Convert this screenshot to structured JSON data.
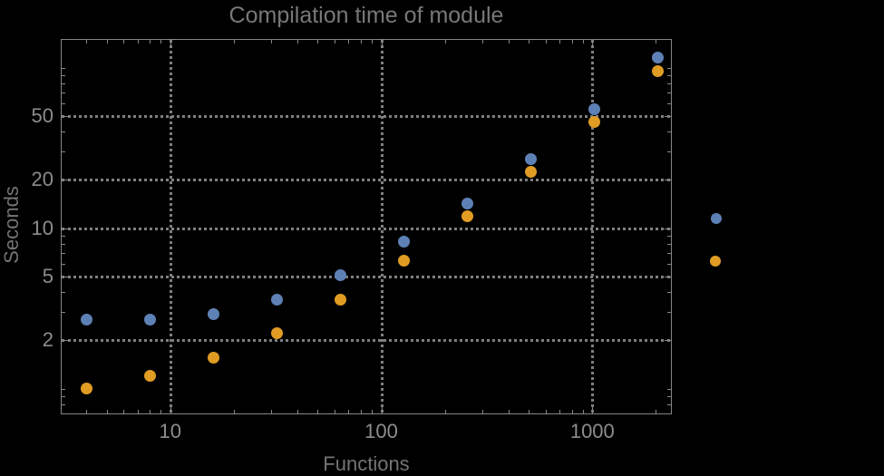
{
  "chart_data": {
    "type": "scatter",
    "title": "Compilation time of module",
    "xlabel": "Functions",
    "ylabel": "Seconds",
    "x_scale": "log",
    "y_scale": "log",
    "xlim": [
      3.03,
      2357
    ],
    "ylim": [
      0.7,
      151
    ],
    "x_major_ticks": [
      10,
      100,
      1000
    ],
    "x_tick_labels": [
      "10",
      "100",
      "1000"
    ],
    "y_major_ticks": [
      2,
      5,
      10,
      20,
      50
    ],
    "y_tick_labels": [
      "2",
      "5",
      "10",
      "20",
      "50"
    ],
    "grid": "dotted gray lines at labeled major ticks only",
    "legend_position": "right-outside",
    "series": [
      {
        "name": "series-blue",
        "color": "#5E81B5",
        "x": [
          4,
          8,
          16,
          32,
          64,
          128,
          256,
          512,
          1024,
          2048
        ],
        "y": [
          2.7,
          2.7,
          2.9,
          3.6,
          5.1,
          8.2,
          14.3,
          27,
          55,
          115
        ]
      },
      {
        "name": "series-orange",
        "color": "#E19C24",
        "x": [
          4,
          8,
          16,
          32,
          64,
          128,
          256,
          512,
          1024,
          2048
        ],
        "y": [
          1.0,
          1.2,
          1.55,
          2.2,
          3.6,
          6.3,
          11.8,
          22.3,
          46,
          95
        ]
      }
    ],
    "legend_markers": [
      {
        "name": "legend-marker-blue",
        "color": "#5E81B5",
        "label": ""
      },
      {
        "name": "legend-marker-orange",
        "color": "#E19C24",
        "label": ""
      }
    ]
  },
  "colors": {
    "background": "#000000",
    "frame": "#868686",
    "grid": "#7F7F7F",
    "tick_text": "#8D8D8D",
    "title_text": "#787878"
  }
}
